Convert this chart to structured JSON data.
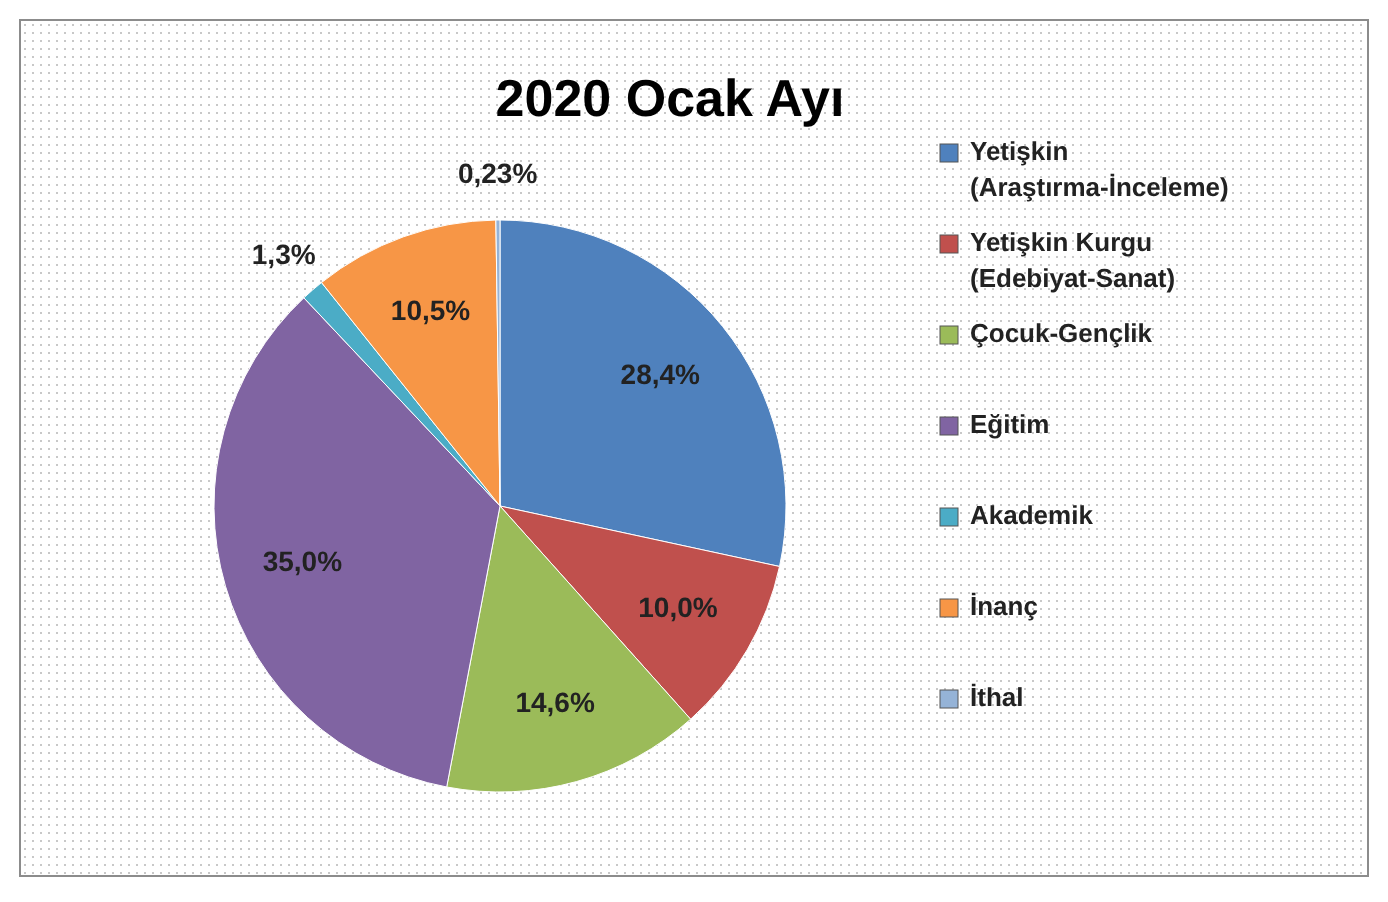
{
  "chart_data": {
    "type": "pie",
    "title": "2020 Ocak Ayı",
    "categories": [
      "Yetişkin (Araştırma-İnceleme)",
      "Yetişkin Kurgu (Edebiyat-Sanat)",
      "Çocuk-Gençlik",
      "Eğitim",
      "Akademik",
      "İnanç",
      "İthal"
    ],
    "values": [
      28.4,
      10.0,
      14.6,
      35.0,
      1.3,
      10.5,
      0.23
    ],
    "value_labels": [
      "28,4%",
      "10,0%",
      "14,6%",
      "35,0%",
      "1,3%",
      "10,5%",
      "0,23%"
    ],
    "colors": [
      "#4f81bd",
      "#c0504d",
      "#9bbb59",
      "#8064a2",
      "#4bacc6",
      "#f79646",
      "#95b3d7"
    ],
    "legend": "right"
  }
}
